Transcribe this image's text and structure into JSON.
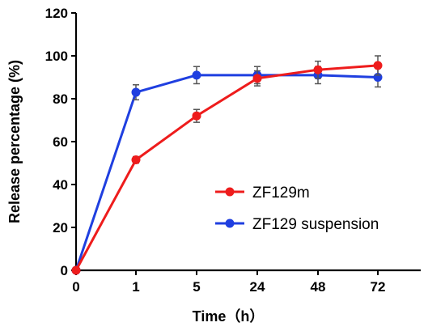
{
  "chart_data": {
    "type": "line",
    "xlabel": "Time（h）",
    "ylabel": "Release percentage (%)",
    "categories": [
      "0",
      "1",
      "5",
      "24",
      "48",
      "72"
    ],
    "ylim": [
      0,
      120
    ],
    "yticks": [
      0,
      20,
      40,
      60,
      80,
      100,
      120
    ],
    "grid": false,
    "legend_position": "center-right",
    "series": [
      {
        "name": "ZF129m",
        "color": "#ee1c1c",
        "values": [
          0,
          51.5,
          72,
          89.5,
          93.5,
          95.5
        ],
        "errors": [
          0,
          1.5,
          3,
          3.5,
          4,
          4.5
        ]
      },
      {
        "name": "ZF129 suspension",
        "color": "#1f3fe0",
        "values": [
          0,
          83,
          91,
          91,
          91,
          90
        ],
        "errors": [
          0,
          3.5,
          4,
          4,
          4,
          4.5
        ]
      }
    ]
  }
}
